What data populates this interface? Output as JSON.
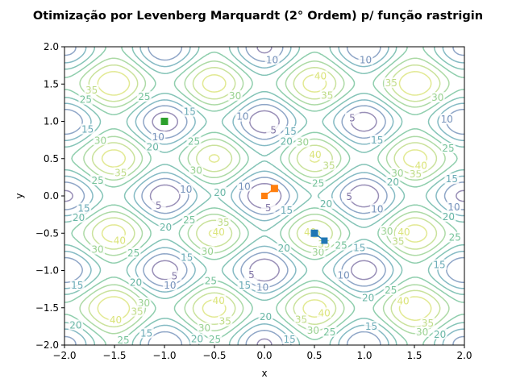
{
  "chart_data": {
    "type": "contour",
    "title": "Otimização por Levenberg Marquardt (2° Ordem) p/ função rastrigin",
    "xlabel": "x",
    "ylabel": "y",
    "xlim": [
      -2.0,
      2.0
    ],
    "ylim": [
      -2.0,
      2.0
    ],
    "xticks": [
      "−2.0",
      "−1.5",
      "−1.0",
      "−0.5",
      "0.0",
      "0.5",
      "1.0",
      "1.5",
      "2.0"
    ],
    "yticks": [
      "−2.0",
      "−1.5",
      "−1.0",
      "−0.5",
      "0.0",
      "0.5",
      "1.0",
      "1.5",
      "2.0"
    ],
    "contour_levels": [
      5,
      10,
      15,
      20,
      25,
      30,
      35,
      40
    ],
    "contour_colors": [
      "#5a4a8a",
      "#4a6fa5",
      "#3a8fa0",
      "#3aa08a",
      "#4ab07a",
      "#7ac470",
      "#aad060",
      "#d0dc50"
    ],
    "function": "rastrigin",
    "grid": false,
    "series": [
      {
        "color": "#1f77b4",
        "x": [
          0.5,
          0.6
        ],
        "y": [
          -0.5,
          -0.6
        ]
      },
      {
        "color": "#ff7f0e",
        "x": [
          0.1,
          0.0
        ],
        "y": [
          0.1,
          0.0
        ]
      },
      {
        "color": "#2ca02c",
        "x": [
          -1.0,
          -1.0
        ],
        "y": [
          1.0,
          1.0
        ]
      }
    ]
  }
}
